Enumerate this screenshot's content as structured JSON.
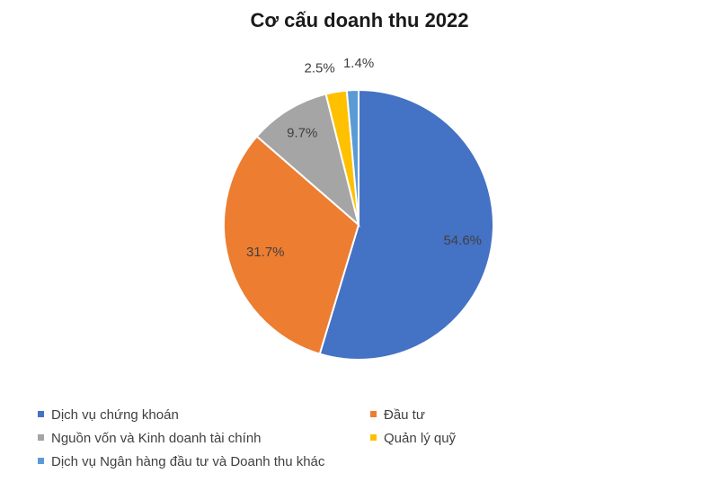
{
  "chart_data": {
    "type": "pie",
    "title": "Cơ cấu doanh thu 2022",
    "categories": [
      "Dịch vụ chứng khoán",
      "Đầu tư",
      "Nguồn vốn và Kinh doanh tài chính",
      "Quản lý quỹ",
      "Dịch vụ Ngân hàng đầu tư và Doanh thu khác"
    ],
    "values": [
      54.6,
      31.7,
      9.7,
      2.5,
      1.4
    ],
    "labels": [
      "54.6%",
      "31.7%",
      "9.7%",
      "2.5%",
      "1.4%"
    ],
    "colors": [
      "#4472C4",
      "#ED7D31",
      "#A5A5A5",
      "#FFC000",
      "#5B9BD5"
    ],
    "legend_position": "bottom"
  }
}
